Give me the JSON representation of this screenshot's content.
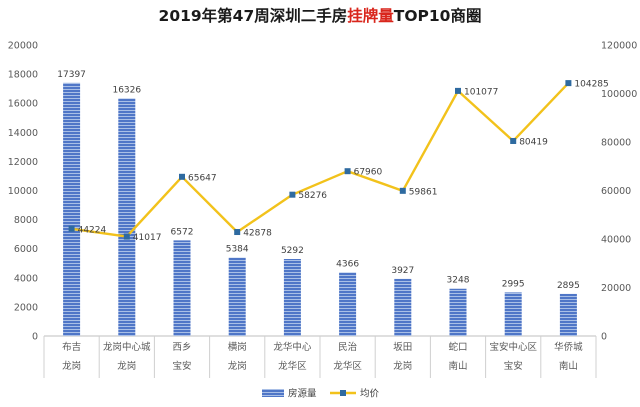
{
  "chart_data": {
    "type": "bar+line",
    "title_parts": [
      {
        "text": "2019年第47周深圳二手房",
        "color": "#1a1a1a"
      },
      {
        "text": "挂牌量",
        "color": "#d9261c"
      },
      {
        "text": "TOP10商圈",
        "color": "#1a1a1a"
      }
    ],
    "categories": [
      [
        "布吉",
        "龙岗"
      ],
      [
        "龙岗中心城",
        "龙岗"
      ],
      [
        "西乡",
        "宝安"
      ],
      [
        "横岗",
        "龙岗"
      ],
      [
        "龙华中心",
        "龙华区"
      ],
      [
        "民治",
        "龙华区"
      ],
      [
        "坂田",
        "龙岗"
      ],
      [
        "蛇口",
        "南山"
      ],
      [
        "宝安中心区",
        "宝安"
      ],
      [
        "华侨城",
        "南山"
      ]
    ],
    "series": [
      {
        "name": "房源量",
        "type": "bar",
        "axis": "left",
        "color": "#4f76c7",
        "values": [
          17397,
          16326,
          6572,
          5384,
          5292,
          4366,
          3927,
          3248,
          2995,
          2895
        ],
        "labels": [
          "17397",
          "16326",
          "6572",
          "5384",
          "5292",
          "4366",
          "3927",
          "3248",
          "2995",
          "2895"
        ]
      },
      {
        "name": "均价",
        "type": "line",
        "axis": "right",
        "line_color": "#f2c21b",
        "marker_color": "#2e6aa0",
        "values": [
          44224,
          41017,
          65647,
          42878,
          58276,
          67960,
          59861,
          101077,
          80419,
          104285
        ],
        "labels": [
          "44224",
          "41017",
          "65647",
          "42878",
          "58276",
          "67960",
          "59861",
          "101077",
          "80419",
          "104285"
        ]
      }
    ],
    "y_left": {
      "min": 0,
      "max": 20000,
      "ticks": [
        "0",
        "2000",
        "4000",
        "6000",
        "8000",
        "10000",
        "12000",
        "14000",
        "16000",
        "18000",
        "20000"
      ]
    },
    "y_right": {
      "min": 0,
      "max": 120000,
      "ticks": [
        "0",
        "20000",
        "40000",
        "60000",
        "80000",
        "100000",
        "120000"
      ]
    },
    "grid": false,
    "legend_position": "bottom-center"
  }
}
